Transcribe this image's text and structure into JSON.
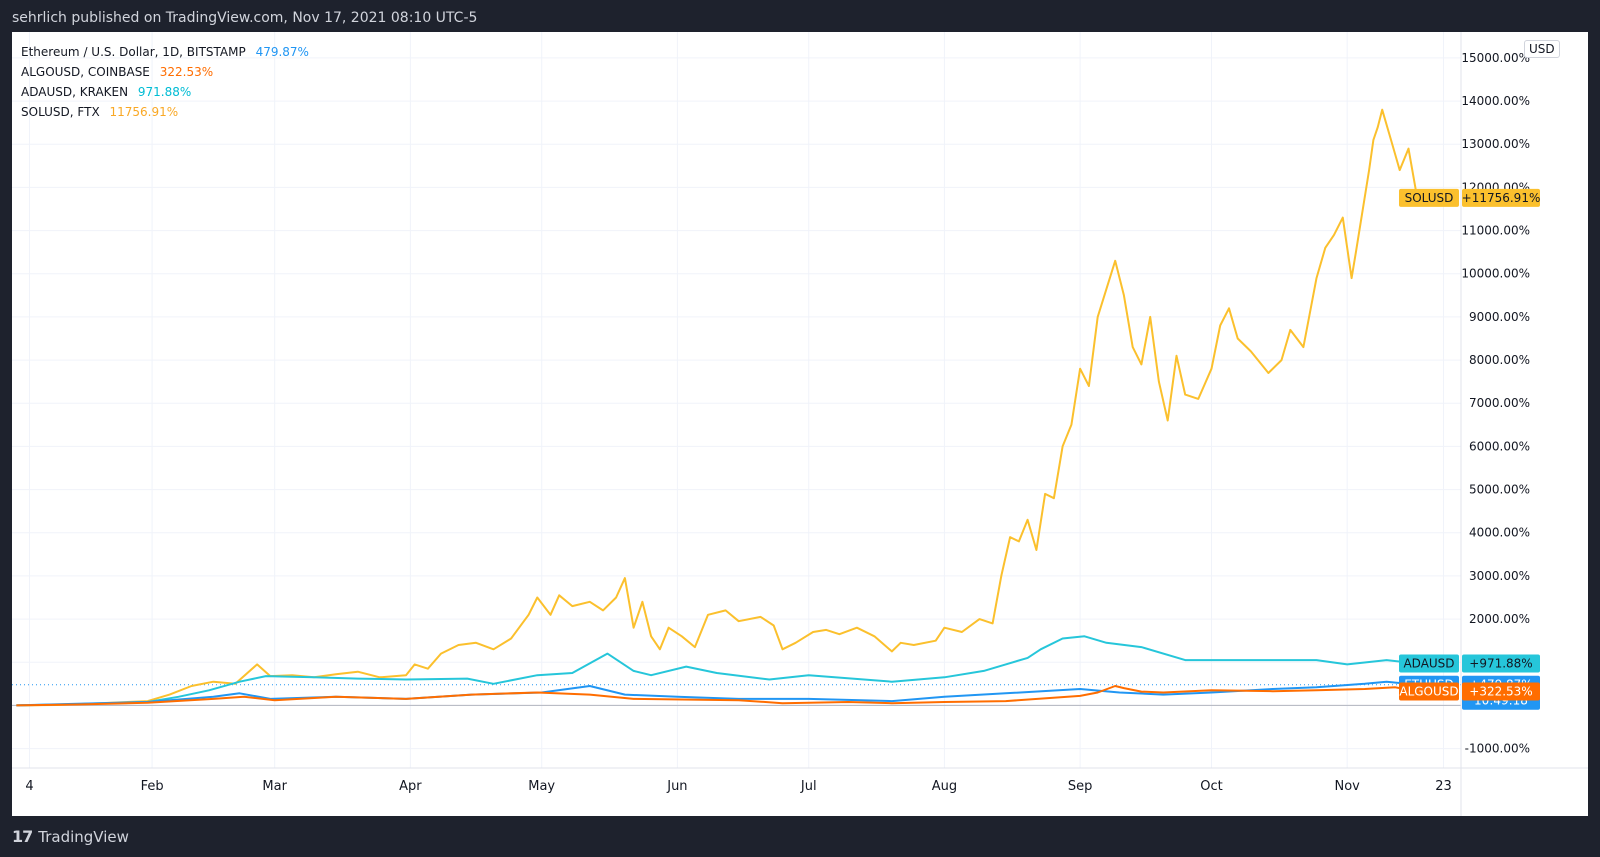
{
  "header": {
    "publisher": "sehrlich published on TradingView.com, Nov 17, 2021 08:10 UTC-5"
  },
  "footer": {
    "brand": "TradingView",
    "logo_text": "17"
  },
  "currency_button": "USD",
  "legend": [
    {
      "label": "Ethereum / U.S. Dollar, 1D, BITSTAMP",
      "value": "479.87%",
      "color": "#2196f3"
    },
    {
      "label": "ALGOUSD, COINBASE",
      "value": "322.53%",
      "color": "#ff6d00"
    },
    {
      "label": "ADAUSD, KRAKEN",
      "value": "971.88%",
      "color": "#00bcd4"
    },
    {
      "label": "SOLUSD, FTX",
      "value": "11756.91%",
      "color": "#fbc02d"
    }
  ],
  "price_badges": [
    {
      "name": "SOLUSD",
      "value": "+11756.91%",
      "color": "#fbc02d",
      "y": 11756.91,
      "text_color": "#131722"
    },
    {
      "name": "ADAUSD",
      "value": "+971.88%",
      "color": "#26c6da",
      "y": 971.88,
      "text_color": "#131722"
    },
    {
      "name": "ETHUSD",
      "value": "+479.87%",
      "extra": "10:49:18",
      "color": "#2196f3",
      "y": 479.87,
      "text_color": "#ffffff"
    },
    {
      "name": "ALGOUSD",
      "value": "+322.53%",
      "color": "#ff6d00",
      "y": 322.53,
      "text_color": "#ffffff"
    }
  ],
  "chart_data": {
    "type": "line",
    "yunit": "%",
    "ylim": [
      -1450,
      15600
    ],
    "y_ticks": [
      -1000,
      2000,
      3000,
      4000,
      5000,
      6000,
      7000,
      8000,
      9000,
      10000,
      11000,
      12000,
      13000,
      14000,
      15000
    ],
    "y_tick_labels": [
      "-1000.00%",
      "2000.00%",
      "3000.00%",
      "4000.00%",
      "5000.00%",
      "6000.00%",
      "7000.00%",
      "8000.00%",
      "9000.00%",
      "10000.00%",
      "11000.00%",
      "12000.00%",
      "13000.00%",
      "14000.00%",
      "15000.00%"
    ],
    "x_axis": {
      "start": "2020-12-31",
      "end": "2021-11-27"
    },
    "x_ticks": [
      {
        "label": "4",
        "date": "2021-01-04"
      },
      {
        "label": "Feb",
        "date": "2021-02-01"
      },
      {
        "label": "Mar",
        "date": "2021-03-01"
      },
      {
        "label": "Apr",
        "date": "2021-04-01"
      },
      {
        "label": "May",
        "date": "2021-05-01"
      },
      {
        "label": "Jun",
        "date": "2021-06-01"
      },
      {
        "label": "Jul",
        "date": "2021-07-01"
      },
      {
        "label": "Aug",
        "date": "2021-08-01"
      },
      {
        "label": "Sep",
        "date": "2021-09-01"
      },
      {
        "label": "Oct",
        "date": "2021-10-01"
      },
      {
        "label": "Nov",
        "date": "2021-11-01"
      },
      {
        "label": "23",
        "date": "2021-11-23"
      }
    ],
    "grid": true,
    "legend_position": "top-left",
    "baseline": 0,
    "series": [
      {
        "name": "SOLUSD",
        "color": "#fbc02d",
        "points": [
          [
            "2021-01-01",
            0
          ],
          [
            "2021-01-10",
            10
          ],
          [
            "2021-01-20",
            50
          ],
          [
            "2021-01-31",
            100
          ],
          [
            "2021-02-05",
            250
          ],
          [
            "2021-02-10",
            450
          ],
          [
            "2021-02-15",
            550
          ],
          [
            "2021-02-20",
            500
          ],
          [
            "2021-02-25",
            950
          ],
          [
            "2021-02-28",
            680
          ],
          [
            "2021-03-05",
            700
          ],
          [
            "2021-03-10",
            650
          ],
          [
            "2021-03-15",
            720
          ],
          [
            "2021-03-20",
            780
          ],
          [
            "2021-03-25",
            650
          ],
          [
            "2021-03-31",
            700
          ],
          [
            "2021-04-02",
            950
          ],
          [
            "2021-04-05",
            850
          ],
          [
            "2021-04-08",
            1200
          ],
          [
            "2021-04-12",
            1400
          ],
          [
            "2021-04-16",
            1450
          ],
          [
            "2021-04-20",
            1300
          ],
          [
            "2021-04-24",
            1550
          ],
          [
            "2021-04-28",
            2100
          ],
          [
            "2021-04-30",
            2500
          ],
          [
            "2021-05-03",
            2100
          ],
          [
            "2021-05-05",
            2550
          ],
          [
            "2021-05-08",
            2300
          ],
          [
            "2021-05-12",
            2400
          ],
          [
            "2021-05-15",
            2200
          ],
          [
            "2021-05-18",
            2500
          ],
          [
            "2021-05-20",
            2950
          ],
          [
            "2021-05-22",
            1800
          ],
          [
            "2021-05-24",
            2400
          ],
          [
            "2021-05-26",
            1600
          ],
          [
            "2021-05-28",
            1300
          ],
          [
            "2021-05-30",
            1800
          ],
          [
            "2021-06-02",
            1600
          ],
          [
            "2021-06-05",
            1350
          ],
          [
            "2021-06-08",
            2100
          ],
          [
            "2021-06-12",
            2200
          ],
          [
            "2021-06-15",
            1950
          ],
          [
            "2021-06-20",
            2050
          ],
          [
            "2021-06-23",
            1850
          ],
          [
            "2021-06-25",
            1300
          ],
          [
            "2021-06-28",
            1450
          ],
          [
            "2021-07-02",
            1700
          ],
          [
            "2021-07-05",
            1750
          ],
          [
            "2021-07-08",
            1650
          ],
          [
            "2021-07-12",
            1800
          ],
          [
            "2021-07-16",
            1600
          ],
          [
            "2021-07-20",
            1250
          ],
          [
            "2021-07-22",
            1450
          ],
          [
            "2021-07-25",
            1400
          ],
          [
            "2021-07-30",
            1500
          ],
          [
            "2021-08-01",
            1800
          ],
          [
            "2021-08-05",
            1700
          ],
          [
            "2021-08-09",
            2000
          ],
          [
            "2021-08-12",
            1900
          ],
          [
            "2021-08-14",
            3000
          ],
          [
            "2021-08-16",
            3900
          ],
          [
            "2021-08-18",
            3800
          ],
          [
            "2021-08-20",
            4300
          ],
          [
            "2021-08-22",
            3600
          ],
          [
            "2021-08-24",
            4900
          ],
          [
            "2021-08-26",
            4800
          ],
          [
            "2021-08-28",
            6000
          ],
          [
            "2021-08-30",
            6500
          ],
          [
            "2021-09-01",
            7800
          ],
          [
            "2021-09-03",
            7400
          ],
          [
            "2021-09-05",
            9000
          ],
          [
            "2021-09-09",
            10300
          ],
          [
            "2021-09-11",
            9500
          ],
          [
            "2021-09-13",
            8300
          ],
          [
            "2021-09-15",
            7900
          ],
          [
            "2021-09-17",
            9000
          ],
          [
            "2021-09-19",
            7500
          ],
          [
            "2021-09-21",
            6600
          ],
          [
            "2021-09-23",
            8100
          ],
          [
            "2021-09-25",
            7200
          ],
          [
            "2021-09-28",
            7100
          ],
          [
            "2021-10-01",
            7800
          ],
          [
            "2021-10-03",
            8800
          ],
          [
            "2021-10-05",
            9200
          ],
          [
            "2021-10-07",
            8500
          ],
          [
            "2021-10-10",
            8200
          ],
          [
            "2021-10-14",
            7700
          ],
          [
            "2021-10-17",
            8000
          ],
          [
            "2021-10-19",
            8700
          ],
          [
            "2021-10-22",
            8300
          ],
          [
            "2021-10-25",
            9900
          ],
          [
            "2021-10-27",
            10600
          ],
          [
            "2021-10-29",
            10900
          ],
          [
            "2021-10-31",
            11300
          ],
          [
            "2021-11-02",
            9900
          ],
          [
            "2021-11-03",
            10500
          ],
          [
            "2021-11-06",
            12400
          ],
          [
            "2021-11-07",
            13100
          ],
          [
            "2021-11-08",
            13400
          ],
          [
            "2021-11-09",
            13800
          ],
          [
            "2021-11-11",
            13100
          ],
          [
            "2021-11-13",
            12400
          ],
          [
            "2021-11-15",
            12900
          ],
          [
            "2021-11-17",
            11756.91
          ]
        ]
      },
      {
        "name": "ADAUSD",
        "color": "#26c6da",
        "points": [
          [
            "2021-01-01",
            0
          ],
          [
            "2021-01-15",
            30
          ],
          [
            "2021-01-31",
            80
          ],
          [
            "2021-02-07",
            200
          ],
          [
            "2021-02-14",
            350
          ],
          [
            "2021-02-21",
            550
          ],
          [
            "2021-02-27",
            680
          ],
          [
            "2021-03-10",
            650
          ],
          [
            "2021-03-20",
            620
          ],
          [
            "2021-03-31",
            600
          ],
          [
            "2021-04-14",
            620
          ],
          [
            "2021-04-20",
            500
          ],
          [
            "2021-04-30",
            700
          ],
          [
            "2021-05-08",
            750
          ],
          [
            "2021-05-16",
            1200
          ],
          [
            "2021-05-22",
            800
          ],
          [
            "2021-05-26",
            700
          ],
          [
            "2021-06-03",
            900
          ],
          [
            "2021-06-10",
            750
          ],
          [
            "2021-06-22",
            600
          ],
          [
            "2021-07-01",
            700
          ],
          [
            "2021-07-20",
            550
          ],
          [
            "2021-08-01",
            650
          ],
          [
            "2021-08-10",
            800
          ],
          [
            "2021-08-15",
            950
          ],
          [
            "2021-08-20",
            1100
          ],
          [
            "2021-08-23",
            1300
          ],
          [
            "2021-08-28",
            1550
          ],
          [
            "2021-09-02",
            1600
          ],
          [
            "2021-09-07",
            1450
          ],
          [
            "2021-09-15",
            1350
          ],
          [
            "2021-09-25",
            1050
          ],
          [
            "2021-10-01",
            1050
          ],
          [
            "2021-10-15",
            1050
          ],
          [
            "2021-10-25",
            1050
          ],
          [
            "2021-11-01",
            950
          ],
          [
            "2021-11-10",
            1050
          ],
          [
            "2021-11-17",
            971.88
          ]
        ]
      },
      {
        "name": "ETHUSD",
        "color": "#2196f3",
        "points": [
          [
            "2021-01-01",
            0
          ],
          [
            "2021-01-15",
            40
          ],
          [
            "2021-01-31",
            80
          ],
          [
            "2021-02-15",
            200
          ],
          [
            "2021-02-21",
            280
          ],
          [
            "2021-02-28",
            150
          ],
          [
            "2021-03-15",
            200
          ],
          [
            "2021-03-31",
            150
          ],
          [
            "2021-04-15",
            250
          ],
          [
            "2021-05-01",
            300
          ],
          [
            "2021-05-12",
            450
          ],
          [
            "2021-05-20",
            250
          ],
          [
            "2021-06-01",
            200
          ],
          [
            "2021-06-15",
            150
          ],
          [
            "2021-07-01",
            150
          ],
          [
            "2021-07-20",
            100
          ],
          [
            "2021-08-01",
            200
          ],
          [
            "2021-08-15",
            280
          ],
          [
            "2021-09-01",
            380
          ],
          [
            "2021-09-10",
            300
          ],
          [
            "2021-09-20",
            250
          ],
          [
            "2021-10-01",
            300
          ],
          [
            "2021-10-15",
            380
          ],
          [
            "2021-10-25",
            420
          ],
          [
            "2021-11-05",
            500
          ],
          [
            "2021-11-10",
            550
          ],
          [
            "2021-11-17",
            479.87
          ]
        ]
      },
      {
        "name": "ALGOUSD",
        "color": "#ff6d00",
        "points": [
          [
            "2021-01-01",
            0
          ],
          [
            "2021-01-15",
            20
          ],
          [
            "2021-01-31",
            60
          ],
          [
            "2021-02-15",
            150
          ],
          [
            "2021-02-22",
            200
          ],
          [
            "2021-03-01",
            120
          ],
          [
            "2021-03-15",
            200
          ],
          [
            "2021-03-31",
            150
          ],
          [
            "2021-04-15",
            250
          ],
          [
            "2021-04-30",
            300
          ],
          [
            "2021-05-12",
            250
          ],
          [
            "2021-05-22",
            150
          ],
          [
            "2021-06-15",
            120
          ],
          [
            "2021-06-25",
            50
          ],
          [
            "2021-07-10",
            80
          ],
          [
            "2021-07-20",
            50
          ],
          [
            "2021-08-01",
            80
          ],
          [
            "2021-08-15",
            100
          ],
          [
            "2021-09-01",
            220
          ],
          [
            "2021-09-05",
            300
          ],
          [
            "2021-09-09",
            450
          ],
          [
            "2021-09-11",
            400
          ],
          [
            "2021-09-15",
            320
          ],
          [
            "2021-09-20",
            300
          ],
          [
            "2021-10-01",
            350
          ],
          [
            "2021-10-15",
            330
          ],
          [
            "2021-10-25",
            350
          ],
          [
            "2021-11-05",
            380
          ],
          [
            "2021-11-12",
            420
          ],
          [
            "2021-11-17",
            322.53
          ]
        ]
      }
    ]
  }
}
